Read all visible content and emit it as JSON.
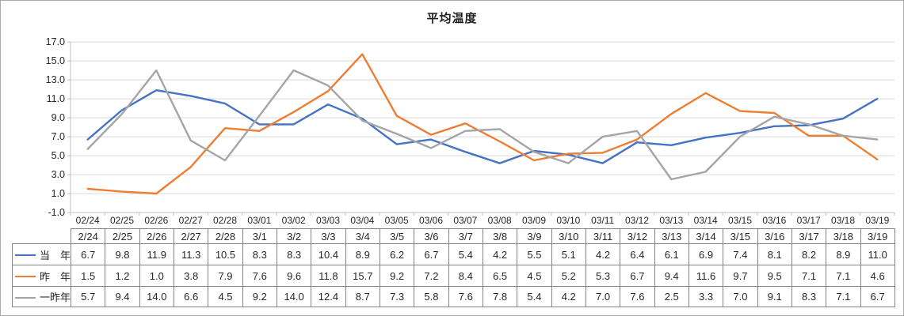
{
  "chart_data": {
    "type": "line",
    "title": "平均温度",
    "x": [
      "02/24",
      "02/25",
      "02/26",
      "02/27",
      "02/28",
      "03/01",
      "03/02",
      "03/03",
      "03/04",
      "03/05",
      "03/06",
      "03/07",
      "03/08",
      "03/09",
      "03/10",
      "03/11",
      "03/12",
      "03/13",
      "03/14",
      "03/15",
      "03/16",
      "03/17",
      "03/18",
      "03/19"
    ],
    "series": [
      {
        "name": "当　年",
        "color": "#4472C4",
        "values": [
          6.7,
          9.8,
          11.9,
          11.3,
          10.5,
          8.3,
          8.3,
          10.4,
          8.9,
          6.2,
          6.7,
          5.4,
          4.2,
          5.5,
          5.1,
          4.2,
          6.4,
          6.1,
          6.9,
          7.4,
          8.1,
          8.2,
          8.9,
          11.0
        ]
      },
      {
        "name": "昨　年",
        "color": "#ED7D31",
        "values": [
          1.5,
          1.2,
          1.0,
          3.8,
          7.9,
          7.6,
          9.6,
          11.8,
          15.7,
          9.2,
          7.2,
          8.4,
          6.5,
          4.5,
          5.2,
          5.3,
          6.7,
          9.4,
          11.6,
          9.7,
          9.5,
          7.1,
          7.1,
          4.6
        ]
      },
      {
        "name": "一昨年",
        "color": "#A5A5A5",
        "values": [
          5.7,
          9.4,
          14.0,
          6.6,
          4.5,
          9.2,
          14.0,
          12.4,
          8.7,
          7.3,
          5.8,
          7.6,
          7.8,
          5.4,
          4.2,
          7.0,
          7.6,
          2.5,
          3.3,
          7.0,
          9.1,
          8.3,
          7.1,
          6.7
        ]
      }
    ],
    "ylim": [
      -1.0,
      17.0
    ],
    "y_step": 2.0,
    "y_tick_labels": [
      "17.0",
      "15.0",
      "13.0",
      "11.0",
      "9.0",
      "7.0",
      "5.0",
      "3.0",
      "1.0",
      "-1.0"
    ],
    "grid": true,
    "legend_position": "data-table-left"
  },
  "table": {
    "dates": [
      "2/24",
      "2/25",
      "2/26",
      "2/27",
      "2/28",
      "3/1",
      "3/2",
      "3/3",
      "3/4",
      "3/5",
      "3/6",
      "3/7",
      "3/8",
      "3/9",
      "3/10",
      "3/11",
      "3/12",
      "3/13",
      "3/14",
      "3/15",
      "3/16",
      "3/17",
      "3/18",
      "3/19"
    ]
  },
  "theme": {
    "gridline_color": "#D9D9D9",
    "axis_color": "#BFBFBF",
    "table_border_color": "#838383",
    "text_color": "#262626",
    "outer_border_color": "#ABABAB",
    "background": "#FFFFFF"
  }
}
